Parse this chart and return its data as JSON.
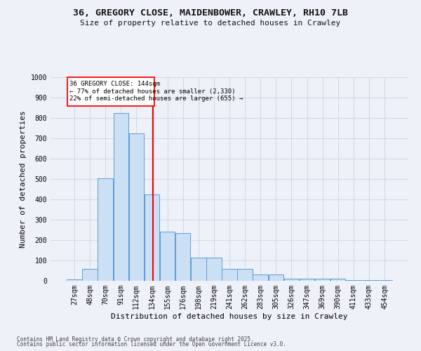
{
  "title": "36, GREGORY CLOSE, MAIDENBOWER, CRAWLEY, RH10 7LB",
  "subtitle": "Size of property relative to detached houses in Crawley",
  "xlabel": "Distribution of detached houses by size in Crawley",
  "ylabel": "Number of detached properties",
  "footer1": "Contains HM Land Registry data © Crown copyright and database right 2025.",
  "footer2": "Contains public sector information licensed under the Open Government Licence v3.0.",
  "bin_labels": [
    "27sqm",
    "48sqm",
    "70sqm",
    "91sqm",
    "112sqm",
    "134sqm",
    "155sqm",
    "176sqm",
    "198sqm",
    "219sqm",
    "241sqm",
    "262sqm",
    "283sqm",
    "305sqm",
    "326sqm",
    "347sqm",
    "369sqm",
    "390sqm",
    "411sqm",
    "433sqm",
    "454sqm"
  ],
  "bar_values": [
    8,
    60,
    505,
    825,
    725,
    425,
    240,
    235,
    115,
    115,
    57,
    57,
    30,
    30,
    12,
    12,
    10,
    10,
    5,
    5,
    5
  ],
  "bar_color": "#cce0f5",
  "bar_edge_color": "#5b9bd5",
  "grid_color": "#d0d8e8",
  "vline_x_idx": 5.09,
  "vline_color": "red",
  "annotation_line1": "36 GREGORY CLOSE: 144sqm",
  "annotation_line2": "← 77% of detached houses are smaller (2,330)",
  "annotation_line3": "22% of semi-detached houses are larger (655) →",
  "annotation_box_color": "white",
  "annotation_box_edge_color": "red",
  "ylim": [
    0,
    1000
  ],
  "yticks": [
    0,
    100,
    200,
    300,
    400,
    500,
    600,
    700,
    800,
    900,
    1000
  ],
  "background_color": "#eef2f8",
  "title_fontsize": 9.5,
  "subtitle_fontsize": 8,
  "tick_fontsize": 7,
  "ylabel_fontsize": 8,
  "xlabel_fontsize": 8
}
